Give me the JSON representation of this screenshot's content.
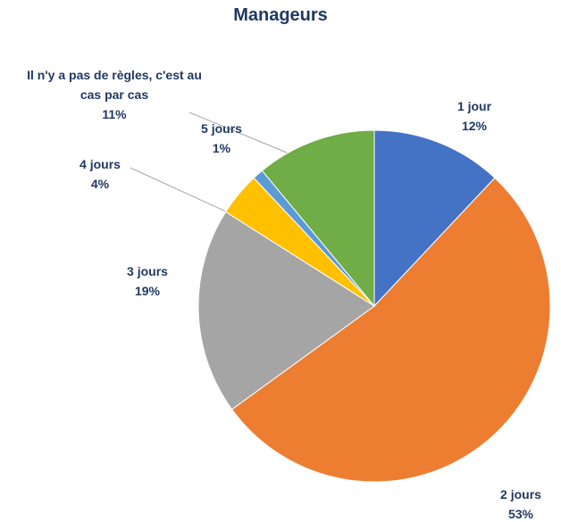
{
  "chart_data": {
    "type": "pie",
    "title": "Manageurs",
    "categories": [
      "1 jour",
      "2 jours",
      "3 jours",
      "4 jours",
      "5 jours",
      "Il n'y a pas de règles, c'est au cas par cas"
    ],
    "values": [
      12,
      53,
      19,
      4,
      1,
      11
    ],
    "value_labels": [
      "12%",
      "53%",
      "19%",
      "4%",
      "1%",
      "11%"
    ],
    "colors": [
      "#4472c4",
      "#ed7d31",
      "#a5a5a5",
      "#ffc000",
      "#5b9bd5",
      "#70ad47"
    ]
  }
}
